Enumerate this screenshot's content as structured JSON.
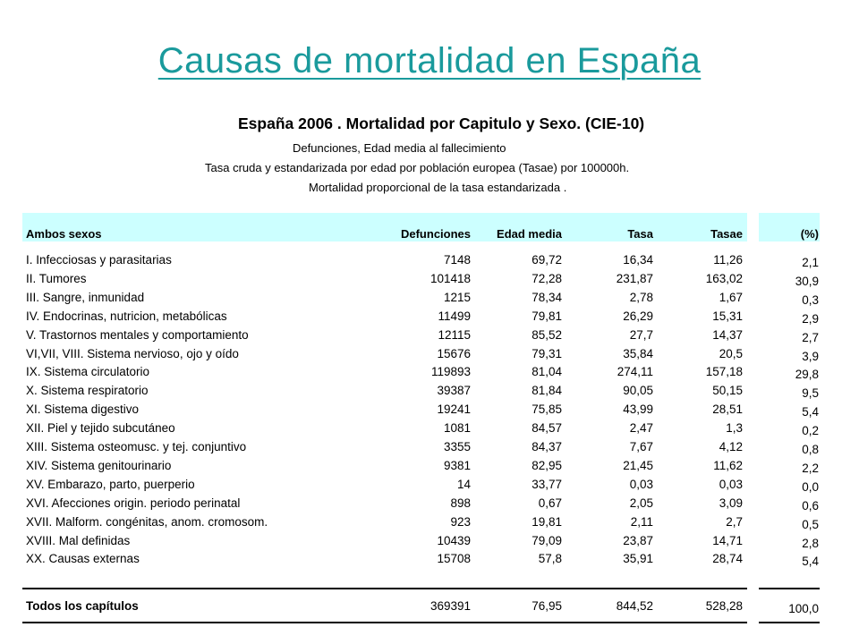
{
  "slide": {
    "title": "Causas de mortalidad en España"
  },
  "table": {
    "title": "España 2006 . Mortalidad por Capitulo  y Sexo. (CIE-10)",
    "subtitles": [
      "Defunciones, Edad media al fallecimiento",
      "Tasa cruda  y estandarizada por edad por población europea (Tasae) por 100000h.",
      "Mortalidad proporcional de la tasa estandarizada ."
    ],
    "headers": {
      "group": "Ambos sexos",
      "deaths": "Defunciones",
      "mean_age": "Edad media",
      "rate": "Tasa",
      "std_rate": "Tasae",
      "percent": "(%)"
    },
    "header_bg": "#ccffff",
    "rows": [
      {
        "name": "I. Infecciosas y parasitarias",
        "deaths": "7148",
        "mean_age": "69,72",
        "rate": "16,34",
        "std_rate": "11,26",
        "percent": "2,1"
      },
      {
        "name": "II. Tumores",
        "deaths": "101418",
        "mean_age": "72,28",
        "rate": "231,87",
        "std_rate": "163,02",
        "percent": "30,9"
      },
      {
        "name": "III. Sangre, inmunidad",
        "deaths": "1215",
        "mean_age": "78,34",
        "rate": "2,78",
        "std_rate": "1,67",
        "percent": "0,3"
      },
      {
        "name": "IV. Endocrinas, nutricion, metabólicas",
        "deaths": "11499",
        "mean_age": "79,81",
        "rate": "26,29",
        "std_rate": "15,31",
        "percent": "2,9"
      },
      {
        "name": "V. Trastornos mentales y comportamiento",
        "deaths": "12115",
        "mean_age": "85,52",
        "rate": "27,7",
        "std_rate": "14,37",
        "percent": "2,7"
      },
      {
        "name": "VI,VII, VIII. Sistema nervioso, ojo y oído",
        "deaths": "15676",
        "mean_age": "79,31",
        "rate": "35,84",
        "std_rate": "20,5",
        "percent": "3,9"
      },
      {
        "name": "IX. Sistema circulatorio",
        "deaths": "119893",
        "mean_age": "81,04",
        "rate": "274,11",
        "std_rate": "157,18",
        "percent": "29,8"
      },
      {
        "name": "X. Sistema respiratorio",
        "deaths": "39387",
        "mean_age": "81,84",
        "rate": "90,05",
        "std_rate": "50,15",
        "percent": "9,5"
      },
      {
        "name": "XI. Sistema digestivo",
        "deaths": "19241",
        "mean_age": "75,85",
        "rate": "43,99",
        "std_rate": "28,51",
        "percent": "5,4"
      },
      {
        "name": "XII. Piel y tejido subcutáneo",
        "deaths": "1081",
        "mean_age": "84,57",
        "rate": "2,47",
        "std_rate": "1,3",
        "percent": "0,2"
      },
      {
        "name": "XIII. Sistema osteomusc. y tej. conjuntivo",
        "deaths": "3355",
        "mean_age": "84,37",
        "rate": "7,67",
        "std_rate": "4,12",
        "percent": "0,8"
      },
      {
        "name": "XIV. Sistema genitourinario",
        "deaths": "9381",
        "mean_age": "82,95",
        "rate": "21,45",
        "std_rate": "11,62",
        "percent": "2,2"
      },
      {
        "name": "XV. Embarazo, parto, puerperio",
        "deaths": "14",
        "mean_age": "33,77",
        "rate": "0,03",
        "std_rate": "0,03",
        "percent": "0,0"
      },
      {
        "name": "XVI. Afecciones origin. periodo perinatal",
        "deaths": "898",
        "mean_age": "0,67",
        "rate": "2,05",
        "std_rate": "3,09",
        "percent": "0,6"
      },
      {
        "name": "XVII. Malform. congénitas, anom. cromosom.",
        "deaths": "923",
        "mean_age": "19,81",
        "rate": "2,11",
        "std_rate": "2,7",
        "percent": "0,5"
      },
      {
        "name": "XVIII. Mal definidas",
        "deaths": "10439",
        "mean_age": "79,09",
        "rate": "23,87",
        "std_rate": "14,71",
        "percent": "2,8"
      },
      {
        "name": "XX. Causas externas",
        "deaths": "15708",
        "mean_age": "57,8",
        "rate": "35,91",
        "std_rate": "28,74",
        "percent": "5,4"
      }
    ],
    "total": {
      "name": "Todos los capítulos",
      "deaths": "369391",
      "mean_age": "76,95",
      "rate": "844,52",
      "std_rate": "528,28",
      "percent": "100,0"
    }
  }
}
